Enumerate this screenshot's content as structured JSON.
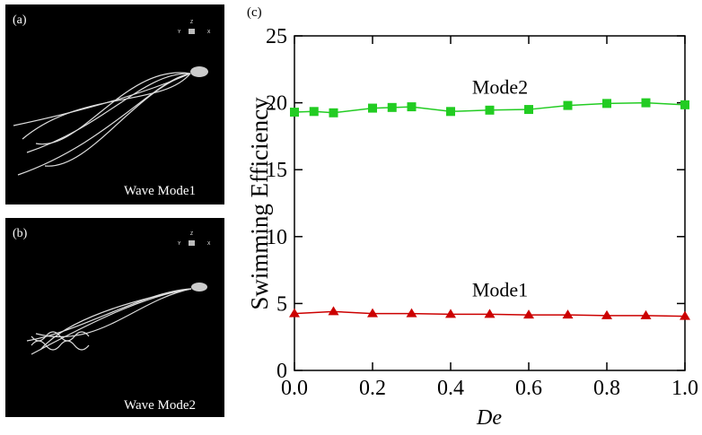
{
  "panels": [
    {
      "label": "(a)",
      "caption": "Wave Mode1",
      "axes": [
        "Z",
        "Y",
        "X"
      ]
    },
    {
      "label": "(b)",
      "caption": "Wave Mode2",
      "axes": [
        "Z",
        "Y",
        "X"
      ]
    }
  ],
  "chart_data": {
    "type": "line",
    "panel_label": "(c)",
    "ylabel": "Swimming Efficiency",
    "xlabel": "De",
    "xlim": [
      0,
      1
    ],
    "ylim": [
      0,
      25
    ],
    "xticks": [
      {
        "value": 0,
        "label": "0.0"
      },
      0.2,
      0.4,
      0.6,
      0.8,
      {
        "value": 1,
        "label": "1.0"
      }
    ],
    "yticks": [
      0,
      5,
      10,
      15,
      20,
      25
    ],
    "series": [
      {
        "name": "Mode2",
        "color": "#22cc22",
        "marker": "square",
        "x": [
          0,
          0.05,
          0.1,
          0.2,
          0.25,
          0.3,
          0.4,
          0.5,
          0.6,
          0.7,
          0.8,
          0.9,
          1
        ],
        "values": [
          19.3,
          19.35,
          19.25,
          19.6,
          19.65,
          19.7,
          19.35,
          19.45,
          19.5,
          19.8,
          19.95,
          20.0,
          19.85
        ]
      },
      {
        "name": "Mode1",
        "color": "#cc0000",
        "marker": "triangle",
        "x": [
          0,
          0.1,
          0.2,
          0.3,
          0.4,
          0.5,
          0.6,
          0.7,
          0.8,
          0.9,
          1
        ],
        "values": [
          4.25,
          4.4,
          4.25,
          4.25,
          4.2,
          4.2,
          4.15,
          4.15,
          4.1,
          4.1,
          4.05
        ]
      }
    ]
  }
}
